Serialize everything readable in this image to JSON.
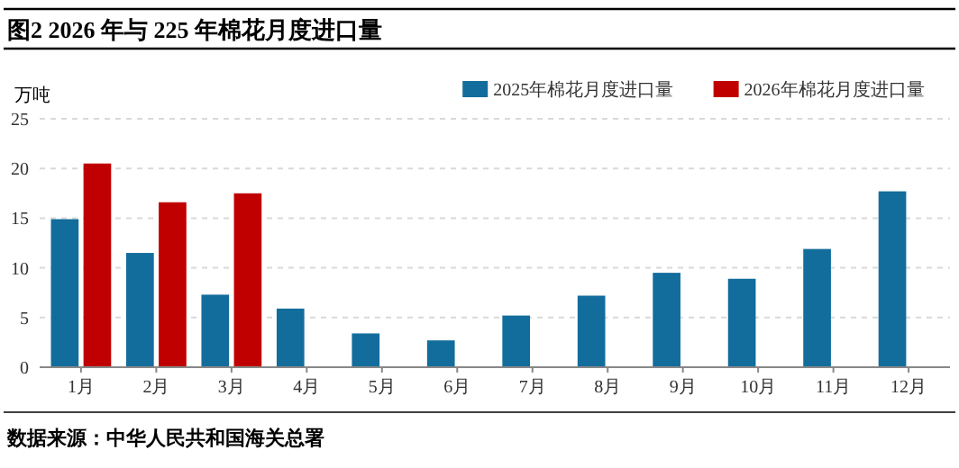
{
  "chart_data": {
    "type": "bar",
    "title": "图2   2026 年与 225 年棉花月度进口量",
    "ylabel": "万吨",
    "categories": [
      "1月",
      "2月",
      "3月",
      "4月",
      "5月",
      "6月",
      "7月",
      "8月",
      "9月",
      "10月",
      "11月",
      "12月"
    ],
    "series": [
      {
        "name": "2025年棉花月度进口量",
        "color": "#126d9c",
        "values": [
          14.9,
          11.5,
          7.3,
          5.9,
          3.4,
          2.7,
          5.2,
          7.2,
          9.5,
          8.9,
          11.9,
          17.7
        ]
      },
      {
        "name": "2026年棉花月度进口量",
        "color": "#c00000",
        "values": [
          20.5,
          16.6,
          17.5,
          null,
          null,
          null,
          null,
          null,
          null,
          null,
          null,
          null
        ]
      }
    ],
    "ylim": [
      0,
      25
    ],
    "yticks": [
      0,
      5,
      10,
      15,
      20,
      25
    ],
    "grid": "y",
    "legend": "top right",
    "annotations": [
      "数据来源：中华人民共和国海关总署"
    ]
  }
}
